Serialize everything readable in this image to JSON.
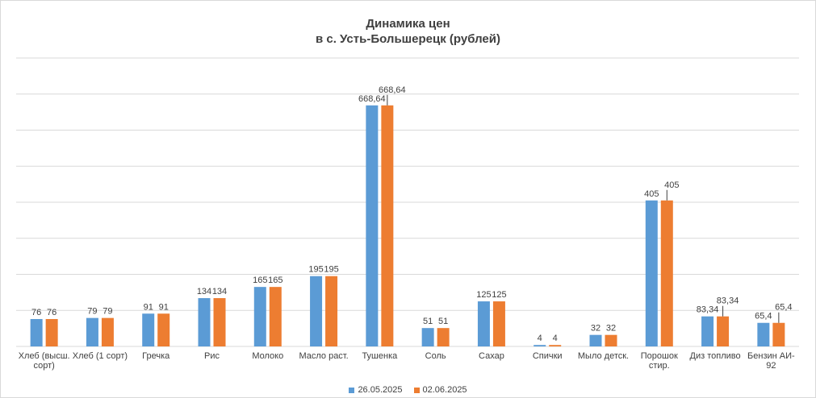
{
  "colors": {
    "series1": "#5b9bd5",
    "series2": "#ed7d31",
    "grid": "#d9d9d9",
    "text": "#404040"
  },
  "chart_data": {
    "type": "bar",
    "title": "Динамика цен",
    "subtitle": "в с. Усть-Большерецк (рублей)",
    "xlabel": "",
    "ylabel": "",
    "ylim": [
      0,
      800
    ],
    "grid": true,
    "legend_position": "bottom",
    "categories": [
      [
        "Хлеб (высш.",
        "сорт)"
      ],
      [
        "Хлеб (1 сорт)"
      ],
      [
        "Гречка"
      ],
      [
        "Рис"
      ],
      [
        "Молоко"
      ],
      [
        "Масло раст."
      ],
      [
        "Тушенка"
      ],
      [
        "Соль"
      ],
      [
        "Сахар"
      ],
      [
        "Спички"
      ],
      [
        "Мыло детск."
      ],
      [
        "Порошок",
        "стир."
      ],
      [
        "Диз топливо"
      ],
      [
        "Бензин АИ-",
        "92"
      ]
    ],
    "series": [
      {
        "name": "26.05.2025",
        "values": [
          76,
          79,
          91,
          134,
          165,
          195,
          668.64,
          51,
          125,
          4,
          32,
          405,
          83.34,
          65.4
        ],
        "labels": [
          "76",
          "79",
          "91",
          "134",
          "165",
          "195",
          "668,64",
          "51",
          "125",
          "4",
          "32",
          "405",
          "83,34",
          "65,4"
        ]
      },
      {
        "name": "02.06.2025",
        "values": [
          76,
          79,
          91,
          134,
          165,
          195,
          668.64,
          51,
          125,
          4,
          32,
          405,
          83.34,
          65.4
        ],
        "labels": [
          "76",
          "79",
          "91",
          "134",
          "165",
          "195",
          "668,64",
          "51",
          "125",
          "4",
          "32",
          "405",
          "83,34",
          "65,4"
        ]
      }
    ]
  }
}
